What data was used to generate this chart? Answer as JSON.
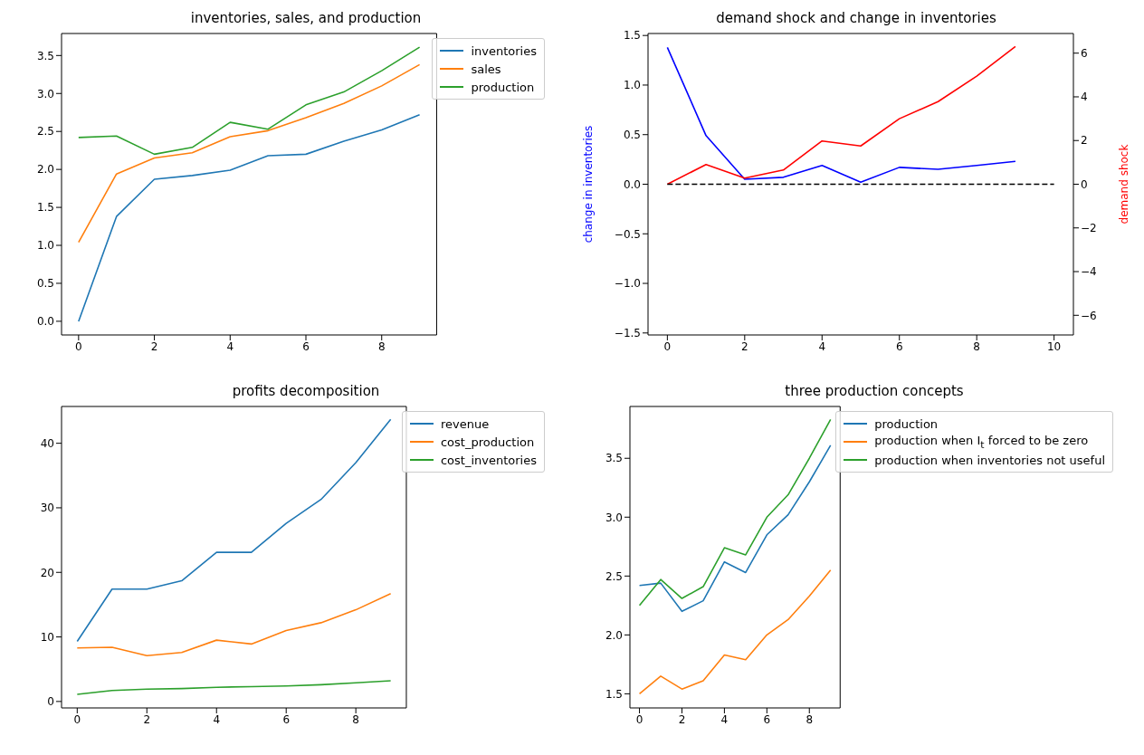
{
  "chart_data": [
    {
      "type": "line",
      "title": "inventories, sales, and production",
      "x": [
        0,
        1,
        2,
        3,
        4,
        5,
        6,
        7,
        8,
        9
      ],
      "xlim": [
        -0.45,
        9.45
      ],
      "xticks": [
        0,
        2,
        4,
        6,
        8
      ],
      "ylim": [
        -0.18,
        3.79
      ],
      "yticks": [
        {
          "value": 0,
          "label": "0.0"
        },
        {
          "value": 0.5,
          "label": "0.5"
        },
        {
          "value": 1,
          "label": "1.0"
        },
        {
          "value": 1.5,
          "label": "1.5"
        },
        {
          "value": 2,
          "label": "2.0"
        },
        {
          "value": 2.5,
          "label": "2.5"
        },
        {
          "value": 3,
          "label": "3.0"
        },
        {
          "value": 3.5,
          "label": "3.5"
        }
      ],
      "legend": "top right",
      "series": [
        {
          "name": "inventories",
          "color": "#1f77b4",
          "values": [
            0,
            1.38,
            1.87,
            1.92,
            1.99,
            2.18,
            2.2,
            2.37,
            2.52,
            2.72
          ]
        },
        {
          "name": "sales",
          "color": "#ff7f0e",
          "values": [
            1.04,
            1.94,
            2.15,
            2.22,
            2.43,
            2.51,
            2.68,
            2.87,
            3.1,
            3.38
          ]
        },
        {
          "name": "production",
          "color": "#2ca02c",
          "values": [
            2.42,
            2.44,
            2.2,
            2.29,
            2.62,
            2.53,
            2.85,
            3.02,
            3.3,
            3.61
          ]
        }
      ]
    },
    {
      "type": "line",
      "title": "demand shock and change in inventories",
      "ylabel": "change in inventories",
      "y2label": "demand shock",
      "x": [
        0,
        1,
        2,
        3,
        4,
        5,
        6,
        7,
        8,
        9
      ],
      "xlim": [
        -0.5,
        10.5
      ],
      "xticks": [
        0,
        2,
        4,
        6,
        8,
        10
      ],
      "ylim": [
        -1.52,
        1.52
      ],
      "yticks": [
        {
          "value": -1.5,
          "label": "−1.5"
        },
        {
          "value": -1,
          "label": "−1.0"
        },
        {
          "value": -0.5,
          "label": "−0.5"
        },
        {
          "value": 0,
          "label": "0.0"
        },
        {
          "value": 0.5,
          "label": "0.5"
        },
        {
          "value": 1,
          "label": "1.0"
        },
        {
          "value": 1.5,
          "label": "1.5"
        }
      ],
      "y2lim": [
        -6.9,
        6.9
      ],
      "y2ticks": [
        {
          "value": -6,
          "label": "−6"
        },
        {
          "value": -4,
          "label": "−4"
        },
        {
          "value": -2,
          "label": "−2"
        },
        0,
        2,
        4,
        6
      ],
      "series": [
        {
          "color": "#0000ff",
          "values": [
            1.38,
            0.49,
            0.05,
            0.07,
            0.19,
            0.02,
            0.17,
            0.15,
            0.19,
            0.23
          ]
        },
        {
          "color": "#ff0000",
          "axis": "y2",
          "values": [
            0,
            0.9,
            0.28,
            0.65,
            1.98,
            1.75,
            3.0,
            3.78,
            4.95,
            6.3
          ]
        },
        {
          "color": "#000000",
          "line_style": "dashed",
          "x": [
            0,
            10
          ],
          "values": [
            0,
            0
          ]
        }
      ]
    },
    {
      "type": "line",
      "title": "profits decomposition",
      "x": [
        0,
        1,
        2,
        3,
        4,
        5,
        6,
        7,
        8,
        9
      ],
      "xlim": [
        -0.45,
        9.45
      ],
      "xticks": [
        0,
        2,
        4,
        6,
        8
      ],
      "ylim": [
        -1.0,
        45.7
      ],
      "yticks": [
        0,
        10,
        20,
        30,
        40
      ],
      "legend": "top right",
      "series": [
        {
          "name": "revenue",
          "color": "#1f77b4",
          "values": [
            9.3,
            17.4,
            17.4,
            18.7,
            23.1,
            23.1,
            27.6,
            31.3,
            37.0,
            43.7
          ]
        },
        {
          "name": "cost_production",
          "color": "#ff7f0e",
          "values": [
            8.3,
            8.4,
            7.1,
            7.6,
            9.5,
            8.9,
            11.0,
            12.2,
            14.2,
            16.7
          ]
        },
        {
          "name": "cost_inventories",
          "color": "#2ca02c",
          "values": [
            1.1,
            1.7,
            1.9,
            2.0,
            2.2,
            2.3,
            2.4,
            2.6,
            2.9,
            3.2
          ]
        }
      ]
    },
    {
      "type": "line",
      "title": "three production concepts",
      "x": [
        0,
        1,
        2,
        3,
        4,
        5,
        6,
        7,
        8,
        9
      ],
      "xlim": [
        -0.45,
        9.45
      ],
      "xticks": [
        0,
        2,
        4,
        6,
        8
      ],
      "ylim": [
        1.38,
        3.94
      ],
      "yticks": [
        {
          "value": 1.5,
          "label": "1.5"
        },
        {
          "value": 2,
          "label": "2.0"
        },
        {
          "value": 2.5,
          "label": "2.5"
        },
        {
          "value": 3,
          "label": "3.0"
        },
        {
          "value": 3.5,
          "label": "3.5"
        }
      ],
      "legend": "top right",
      "series": [
        {
          "name": "production",
          "color": "#1f77b4",
          "values": [
            2.42,
            2.44,
            2.2,
            2.29,
            2.62,
            2.53,
            2.85,
            3.02,
            3.3,
            3.61
          ]
        },
        {
          "name": "production when I$_{t}$ forced to be zero",
          "color": "#ff7f0e",
          "values": [
            1.5,
            1.65,
            1.54,
            1.61,
            1.83,
            1.79,
            2.0,
            2.13,
            2.33,
            2.55
          ]
        },
        {
          "name": "production when inventories not useful",
          "color": "#2ca02c",
          "values": [
            2.25,
            2.47,
            2.31,
            2.41,
            2.74,
            2.68,
            3.0,
            3.19,
            3.5,
            3.83
          ]
        }
      ]
    }
  ]
}
